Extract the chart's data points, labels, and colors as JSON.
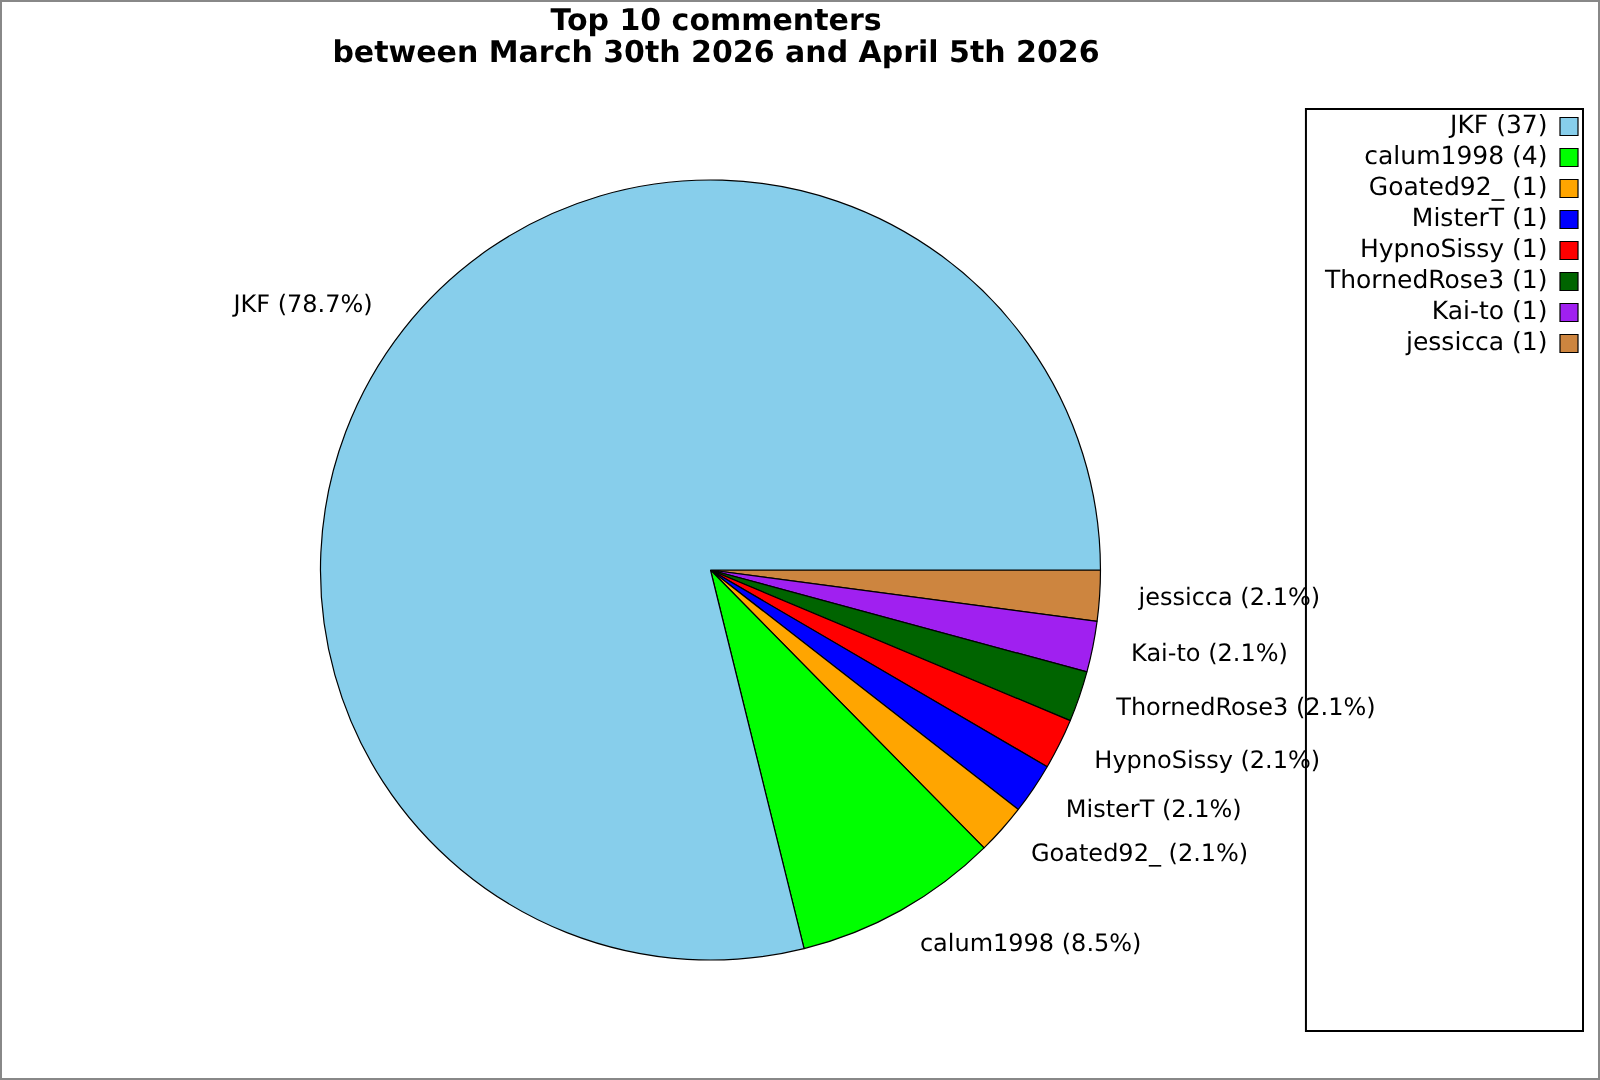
{
  "chart_data": {
    "type": "pie",
    "title": "Top 10 commenters",
    "subtitle": "between March 30th 2026 and April 5th 2026",
    "categories": [
      "JKF (37)",
      "calum1998 (4)",
      "Goated92_ (1)",
      "MisterT (1)",
      "HypnoSissy (1)",
      "ThornedRose3 (1)",
      "Kai-to (1)",
      "jessicca (1)"
    ],
    "values": [
      78.7,
      8.5,
      2.1,
      2.1,
      2.1,
      2.1,
      2.1,
      2.1
    ],
    "colors": [
      "#87ceeb",
      "#00ff00",
      "#ffa500",
      "#0000ff",
      "#ff0000",
      "#006400",
      "#a020f0",
      "#cd853f"
    ],
    "value_labels": [
      "JKF (78.7%)",
      "calum1998 (8.5%)",
      "Goated92_ (2.1%)",
      "MisterT (2.1%)",
      "HypnoSissy (2.1%)",
      "ThornedRose3 (2.1%)",
      "Kai-to (2.1%)",
      "jessicca (2.1%)"
    ],
    "legend": "top right"
  }
}
